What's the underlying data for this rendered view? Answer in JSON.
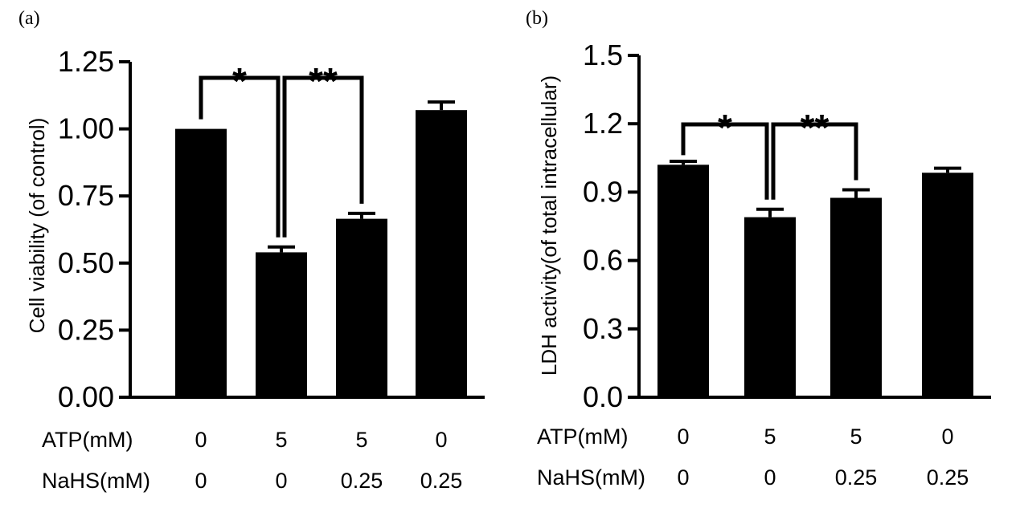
{
  "chart_data": [
    {
      "type": "bar",
      "panel_label": "(a)",
      "ylabel": "Cell viability (of control)",
      "ylim": [
        0,
        1.25
      ],
      "yticks": [
        "0.00",
        "0.25",
        "0.50",
        "0.75",
        "1.00",
        "1.25"
      ],
      "values": [
        1.0,
        0.54,
        0.665,
        1.07
      ],
      "errors": [
        0.0,
        0.02,
        0.02,
        0.03
      ],
      "conditions": [
        {
          "name": "ATP(mM)",
          "values": [
            "0",
            "5",
            "5",
            "0"
          ]
        },
        {
          "name": "NaHS(mM)",
          "values": [
            "0",
            "0",
            "0.25",
            "0.25"
          ]
        }
      ],
      "significance": [
        {
          "from": 0,
          "to": 1,
          "label": "*"
        },
        {
          "from": 1,
          "to": 2,
          "label": "**"
        }
      ],
      "bar_color": "#000000"
    },
    {
      "type": "bar",
      "panel_label": "(b)",
      "ylabel": "LDH activity(of total intracellular)",
      "ylim": [
        0,
        1.5
      ],
      "yticks": [
        "0.0",
        "0.3",
        "0.6",
        "0.9",
        "1.2",
        "1.5"
      ],
      "values": [
        1.02,
        0.79,
        0.875,
        0.985
      ],
      "errors": [
        0.015,
        0.035,
        0.035,
        0.02
      ],
      "conditions": [
        {
          "name": "ATP(mM)",
          "values": [
            "0",
            "5",
            "5",
            "0"
          ]
        },
        {
          "name": "NaHS(mM)",
          "values": [
            "0",
            "0",
            "0.25",
            "0.25"
          ]
        }
      ],
      "significance": [
        {
          "from": 0,
          "to": 1,
          "label": "*"
        },
        {
          "from": 1,
          "to": 2,
          "label": "**"
        }
      ],
      "bar_color": "#000000"
    }
  ]
}
